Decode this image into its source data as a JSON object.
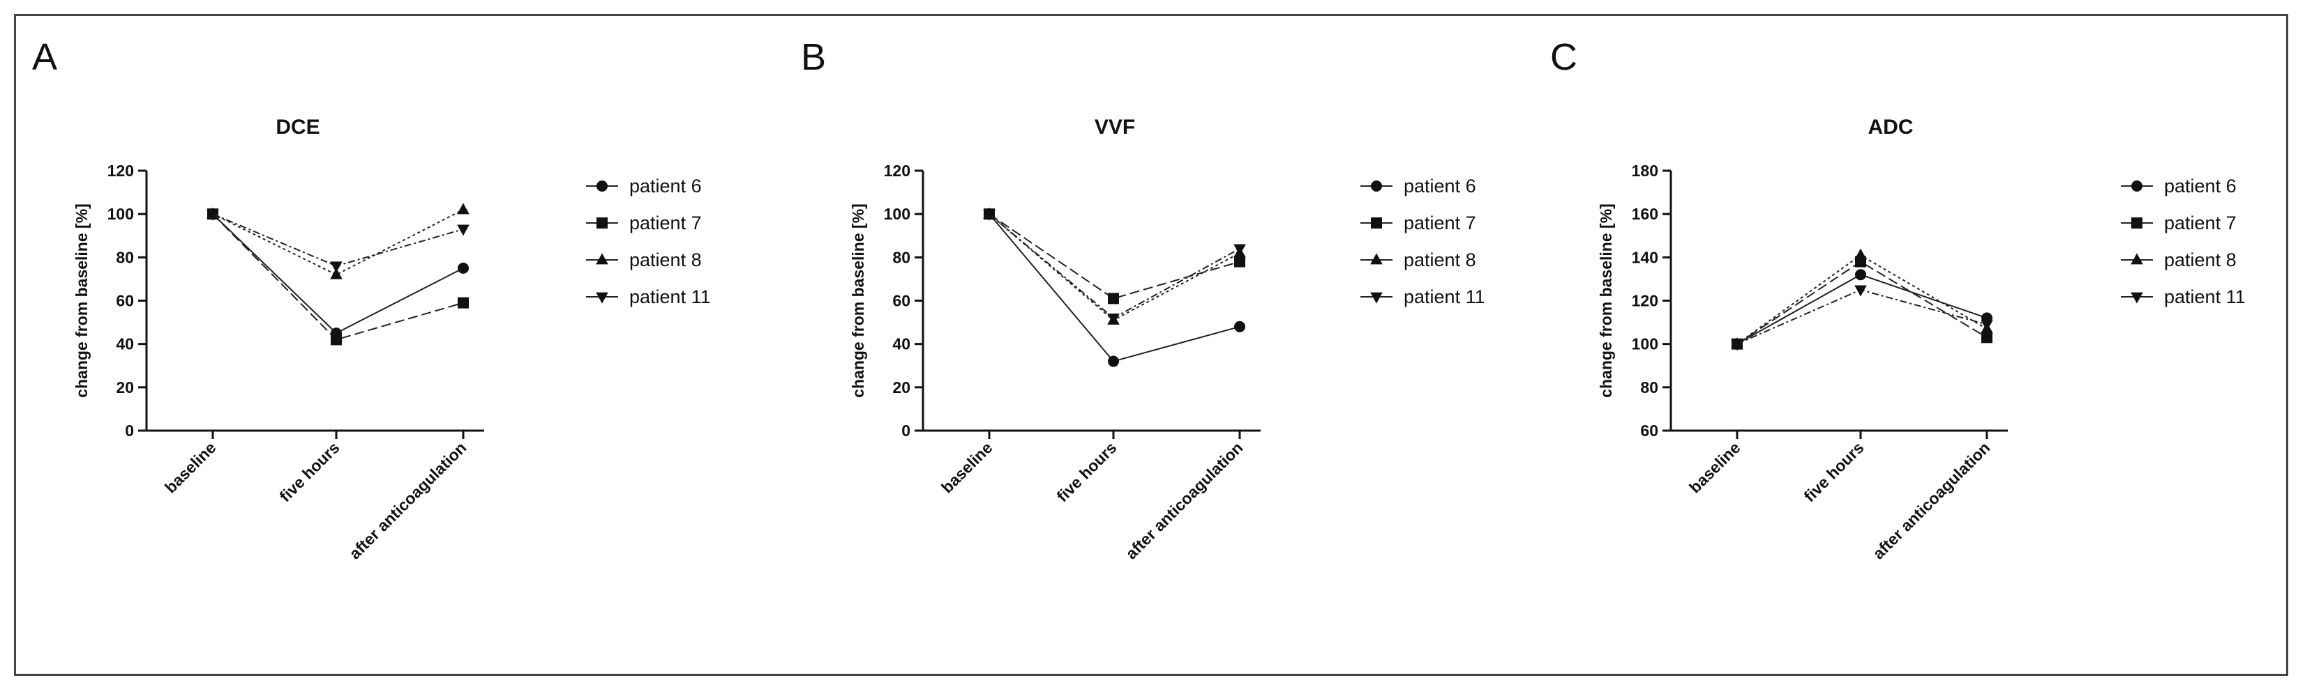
{
  "chart_data": [
    {
      "panel": "A",
      "type": "line",
      "title": "DCE",
      "ylabel": "change from baseline [%]",
      "xlabel": "",
      "categories": [
        "baseline",
        "five hours",
        "after anticoagulation"
      ],
      "ylim": [
        0,
        120
      ],
      "yticks": [
        0,
        20,
        40,
        60,
        80,
        100,
        120
      ],
      "series": [
        {
          "name": "patient 6",
          "marker": "circle",
          "values": [
            100,
            45,
            75
          ]
        },
        {
          "name": "patient 7",
          "marker": "square",
          "values": [
            100,
            42,
            59
          ]
        },
        {
          "name": "patient 8",
          "marker": "triangle-up",
          "values": [
            100,
            72,
            102
          ]
        },
        {
          "name": "patient 11",
          "marker": "triangle-down",
          "values": [
            100,
            76,
            93
          ]
        }
      ],
      "legend": "right"
    },
    {
      "panel": "B",
      "type": "line",
      "title": "VVF",
      "ylabel": "change from baseline [%]",
      "xlabel": "",
      "categories": [
        "baseline",
        "five hours",
        "after anticoagulation"
      ],
      "ylim": [
        0,
        120
      ],
      "yticks": [
        0,
        20,
        40,
        60,
        80,
        100,
        120
      ],
      "series": [
        {
          "name": "patient 6",
          "marker": "circle",
          "values": [
            100,
            32,
            48
          ]
        },
        {
          "name": "patient 7",
          "marker": "square",
          "values": [
            100,
            61,
            78
          ]
        },
        {
          "name": "patient 8",
          "marker": "triangle-up",
          "values": [
            100,
            51,
            82
          ]
        },
        {
          "name": "patient 11",
          "marker": "triangle-down",
          "values": [
            100,
            52,
            84
          ]
        }
      ],
      "legend": "right"
    },
    {
      "panel": "C",
      "type": "line",
      "title": "ADC",
      "ylabel": "change from baseline [%]",
      "xlabel": "",
      "categories": [
        "baseline",
        "five hours",
        "after anticoagulation"
      ],
      "ylim": [
        60,
        180
      ],
      "yticks": [
        60,
        80,
        100,
        120,
        140,
        160,
        180
      ],
      "series": [
        {
          "name": "patient 6",
          "marker": "circle",
          "values": [
            100,
            132,
            112
          ]
        },
        {
          "name": "patient 7",
          "marker": "square",
          "values": [
            100,
            138,
            103
          ]
        },
        {
          "name": "patient 8",
          "marker": "triangle-up",
          "values": [
            100,
            141,
            107
          ]
        },
        {
          "name": "patient 11",
          "marker": "triangle-down",
          "values": [
            100,
            125,
            109
          ]
        }
      ],
      "legend": "right"
    }
  ]
}
